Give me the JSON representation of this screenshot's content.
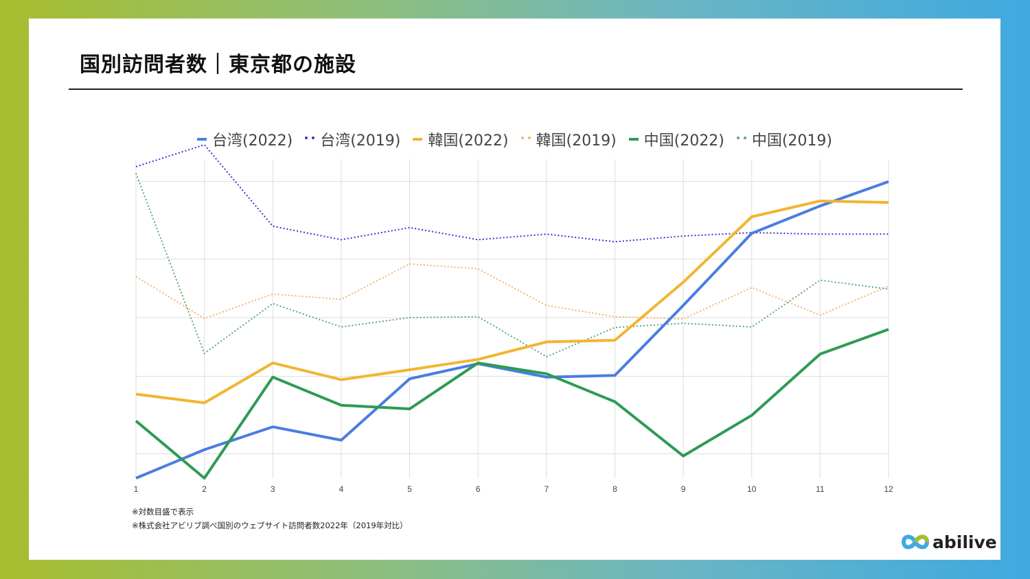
{
  "slide": {
    "title": "国別訪問者数｜東京都の施設",
    "notes": [
      "※対数目盛で表示",
      "※株式会社アビリブ調べ国別のウェブサイト訪問者数2022年（2019年対比）"
    ],
    "logo_text": "abilive"
  },
  "chart_data": {
    "type": "line",
    "title": "",
    "xlabel": "",
    "ylabel": "",
    "y_scale": "log",
    "y_tick_labels_shown": false,
    "grid": true,
    "legend_position": "top",
    "categories": [
      "1",
      "2",
      "3",
      "4",
      "5",
      "6",
      "7",
      "8",
      "9",
      "10",
      "11",
      "12"
    ],
    "ylim": [
      0.3,
      13
    ],
    "series": [
      {
        "name": "台湾(2022)",
        "style": "solid",
        "color": "#4a7de1",
        "values": [
          0.3,
          0.42,
          0.55,
          0.47,
          0.97,
          1.16,
          0.99,
          1.01,
          2.31,
          5.41,
          7.48,
          9.97
        ]
      },
      {
        "name": "台湾(2019)",
        "style": "dotted",
        "color": "#3b2fd1",
        "values": [
          11.9,
          15.4,
          5.89,
          5.02,
          5.79,
          5.02,
          5.36,
          4.9,
          5.24,
          5.46,
          5.36,
          5.36
        ]
      },
      {
        "name": "韓国(2022)",
        "style": "solid",
        "color": "#f2b530",
        "values": [
          0.81,
          0.73,
          1.17,
          0.96,
          1.08,
          1.22,
          1.5,
          1.53,
          3.04,
          6.58,
          7.93,
          7.79
        ]
      },
      {
        "name": "韓国(2019)",
        "style": "dotted",
        "color": "#f4b26a",
        "values": [
          3.25,
          1.98,
          2.64,
          2.48,
          3.77,
          3.56,
          2.31,
          2.02,
          1.97,
          2.85,
          2.06,
          2.9
        ]
      },
      {
        "name": "中国(2022)",
        "style": "solid",
        "color": "#2e9a55",
        "values": [
          0.59,
          0.3,
          0.99,
          0.71,
          0.68,
          1.17,
          1.03,
          0.74,
          0.39,
          0.63,
          1.3,
          1.74
        ]
      },
      {
        "name": "中国(2019)",
        "style": "dotted",
        "color": "#5aa57a",
        "values": [
          11.0,
          1.31,
          2.36,
          1.79,
          2.0,
          2.02,
          1.26,
          1.78,
          1.87,
          1.79,
          3.11,
          2.8
        ]
      }
    ]
  }
}
